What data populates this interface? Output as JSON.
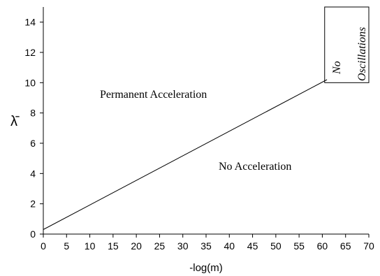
{
  "chart_data": {
    "type": "line",
    "xlabel": "-log(m)",
    "ylabel": "λ̄",
    "xlim": [
      0,
      70
    ],
    "ylim": [
      0,
      15
    ],
    "x_ticks": [
      "0",
      "5",
      "10",
      "15",
      "20",
      "25",
      "30",
      "35",
      "40",
      "45",
      "50",
      "55",
      "60",
      "65",
      "70"
    ],
    "y_ticks": [
      "0",
      "2",
      "4",
      "6",
      "8",
      "10",
      "12",
      "14"
    ],
    "boundary_line": {
      "x": [
        0,
        61
      ],
      "y": [
        0.3,
        10.2
      ]
    },
    "no_oscillation_box": {
      "x": [
        60.5,
        70
      ],
      "y": [
        10,
        15
      ]
    },
    "annotations": {
      "permanent": "Permanent  Acceleration",
      "none": "No Acceleration",
      "no_osc_line1": "No",
      "no_osc_line2": "Oscillations"
    },
    "grid": false
  }
}
